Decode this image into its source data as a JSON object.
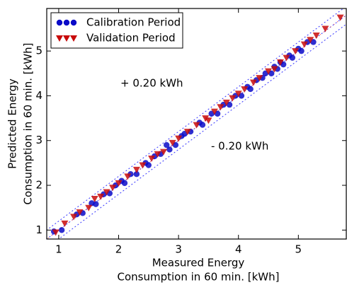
{
  "chart_data": {
    "type": "scatter",
    "xlabel": [
      "Measured Energy",
      "Consumption in 60 min. [kWh]"
    ],
    "ylabel": [
      "Predicted Energy",
      "Consumption in 60 min. [kWh]"
    ],
    "xlim": [
      0.8,
      5.8
    ],
    "ylim": [
      0.8,
      5.95
    ],
    "xticks": [
      1,
      2,
      3,
      4,
      5
    ],
    "yticks": [
      1,
      2,
      3,
      4,
      5
    ],
    "grid": false,
    "legend": "upper left",
    "tolerance_lines": [
      {
        "offset": 0.2,
        "label": "+ 0.20 kWh"
      },
      {
        "offset": -0.2,
        "label": "- 0.20 kWh"
      }
    ],
    "series": [
      {
        "name": "Calibration Period",
        "color": "#0a0ac8",
        "marker": "circle",
        "x": [
          0.92,
          1.05,
          1.3,
          1.4,
          1.55,
          1.62,
          1.75,
          1.85,
          1.95,
          2.05,
          2.1,
          2.2,
          2.3,
          2.45,
          2.5,
          2.6,
          2.7,
          2.8,
          2.85,
          2.95,
          3.05,
          3.1,
          3.2,
          3.35,
          3.4,
          3.55,
          3.65,
          3.75,
          3.85,
          3.95,
          4.05,
          4.15,
          4.2,
          4.3,
          4.4,
          4.45,
          4.55,
          4.6,
          4.65,
          4.7,
          4.75,
          4.85,
          4.9,
          5.0,
          5.05,
          5.15,
          5.25
        ],
        "y": [
          0.97,
          1.0,
          1.35,
          1.38,
          1.6,
          1.58,
          1.8,
          1.82,
          2.0,
          2.1,
          2.05,
          2.25,
          2.25,
          2.5,
          2.45,
          2.65,
          2.7,
          2.9,
          2.8,
          2.9,
          3.1,
          3.15,
          3.2,
          3.4,
          3.35,
          3.6,
          3.6,
          3.8,
          3.8,
          4.0,
          4.0,
          4.2,
          4.15,
          4.35,
          4.4,
          4.5,
          4.5,
          4.65,
          4.6,
          4.75,
          4.7,
          4.9,
          4.85,
          5.05,
          5.0,
          5.2,
          5.2
        ]
      },
      {
        "name": "Validation Period",
        "color": "#c80a0a",
        "marker": "triangle-down",
        "x": [
          0.95,
          1.1,
          1.25,
          1.35,
          1.5,
          1.6,
          1.7,
          1.8,
          1.9,
          2.0,
          2.15,
          2.3,
          2.4,
          2.55,
          2.65,
          2.75,
          2.9,
          3.0,
          3.15,
          3.3,
          3.45,
          3.5,
          3.6,
          3.7,
          3.8,
          3.9,
          4.0,
          4.1,
          4.25,
          4.35,
          4.5,
          4.6,
          4.7,
          4.8,
          4.95,
          5.1,
          5.2,
          5.3,
          5.45,
          5.7
        ],
        "y": [
          0.95,
          1.15,
          1.3,
          1.4,
          1.5,
          1.7,
          1.75,
          1.85,
          1.95,
          2.05,
          2.2,
          2.35,
          2.45,
          2.6,
          2.7,
          2.75,
          2.95,
          3.05,
          3.2,
          3.35,
          3.5,
          3.45,
          3.65,
          3.75,
          3.85,
          3.95,
          4.05,
          4.15,
          4.3,
          4.4,
          4.55,
          4.6,
          4.75,
          4.85,
          5.0,
          5.15,
          5.25,
          5.35,
          5.5,
          5.75
        ]
      }
    ]
  }
}
